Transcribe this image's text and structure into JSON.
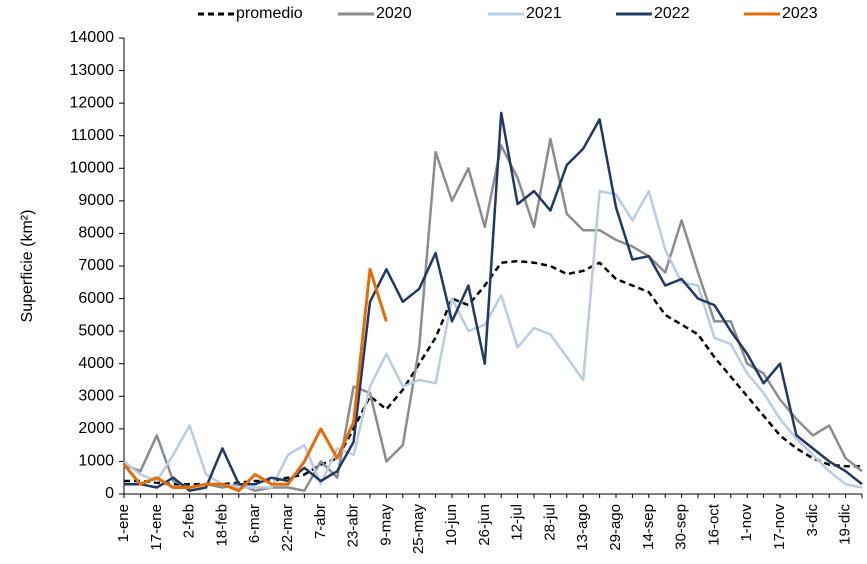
{
  "chart_data": {
    "type": "line",
    "y_label": "Superficie (km²)",
    "categories": [
      "1-ene",
      null,
      "17-ene",
      null,
      "2-feb",
      null,
      "18-feb",
      null,
      "6-mar",
      null,
      "22-mar",
      null,
      "7-abr",
      null,
      "23-abr",
      null,
      "9-may",
      null,
      "25-may",
      null,
      "10-jun",
      null,
      "26-jun",
      null,
      "12-jul",
      null,
      "28-jul",
      null,
      "13-ago",
      null,
      "29-ago",
      null,
      "14-sep",
      null,
      "30-sep",
      null,
      "16-oct",
      null,
      "1-nov",
      null,
      "17-nov",
      null,
      "3-dic",
      null,
      "19-dic",
      null
    ],
    "ylim": [
      0,
      14000
    ],
    "yticks": [
      0,
      1000,
      2000,
      3000,
      4000,
      5000,
      6000,
      7000,
      8000,
      9000,
      10000,
      11000,
      12000,
      13000,
      14000
    ],
    "grid": false,
    "legend": "top",
    "series": [
      {
        "name": "promedio",
        "color": "#000000",
        "dashed": true,
        "values": [
          400,
          400,
          350,
          300,
          300,
          300,
          300,
          350,
          400,
          400,
          500,
          600,
          900,
          1100,
          2000,
          3000,
          2600,
          3200,
          4000,
          4800,
          6000,
          5800,
          6400,
          7100,
          7150,
          7100,
          7000,
          6750,
          6850,
          7100,
          6600,
          6400,
          6200,
          5500,
          5200,
          4900,
          4200,
          3600,
          3000,
          2400,
          1800,
          1400,
          1100,
          900,
          850,
          850
        ]
      },
      {
        "name": "2020",
        "color": "#8c8c8c",
        "dashed": false,
        "values": [
          900,
          700,
          1800,
          400,
          200,
          300,
          200,
          300,
          100,
          200,
          200,
          100,
          1000,
          500,
          3300,
          3100,
          1000,
          1500,
          4500,
          10500,
          9000,
          10000,
          8200,
          10700,
          9700,
          8200,
          10900,
          8600,
          8100,
          8100,
          7800,
          7600,
          7300,
          6800,
          8400,
          6800,
          5300,
          5300,
          4000,
          3700,
          2900,
          2300,
          1800,
          2100,
          1100,
          700
        ]
      },
      {
        "name": "2021",
        "color": "#b8cce4",
        "dashed": false,
        "values": [
          1000,
          600,
          400,
          1200,
          2100,
          600,
          300,
          200,
          200,
          200,
          1200,
          1500,
          300,
          1400,
          1200,
          3300,
          4300,
          3300,
          3500,
          3400,
          6000,
          5000,
          5200,
          6100,
          4500,
          5100,
          4900,
          4200,
          3500,
          9300,
          9200,
          8400,
          9300,
          7500,
          6500,
          6400,
          4800,
          4600,
          3700,
          3100,
          2300,
          1700,
          1200,
          700,
          300,
          200
        ]
      },
      {
        "name": "2022",
        "color": "#1f3864",
        "dashed": false,
        "values": [
          300,
          300,
          200,
          500,
          100,
          200,
          1400,
          300,
          300,
          500,
          400,
          800,
          400,
          700,
          1600,
          5900,
          6900,
          5900,
          6300,
          7400,
          5300,
          6400,
          4000,
          11700,
          8900,
          9300,
          8700,
          10100,
          10600,
          11500,
          8800,
          7200,
          7300,
          6400,
          6600,
          6000,
          5800,
          5000,
          4300,
          3400,
          4000,
          1800,
          1400,
          1000,
          700,
          300
        ]
      },
      {
        "name": "2023",
        "color": "#e36c09",
        "dashed": false,
        "values": [
          900,
          300,
          500,
          200,
          200,
          300,
          300,
          100,
          600,
          300,
          300,
          1000,
          2000,
          1100,
          2200,
          6900,
          5300,
          null,
          null,
          null,
          null,
          null,
          null,
          null,
          null,
          null,
          null,
          null,
          null,
          null,
          null,
          null,
          null,
          null,
          null,
          null,
          null,
          null,
          null,
          null,
          null,
          null,
          null,
          null,
          null,
          null
        ]
      }
    ]
  }
}
